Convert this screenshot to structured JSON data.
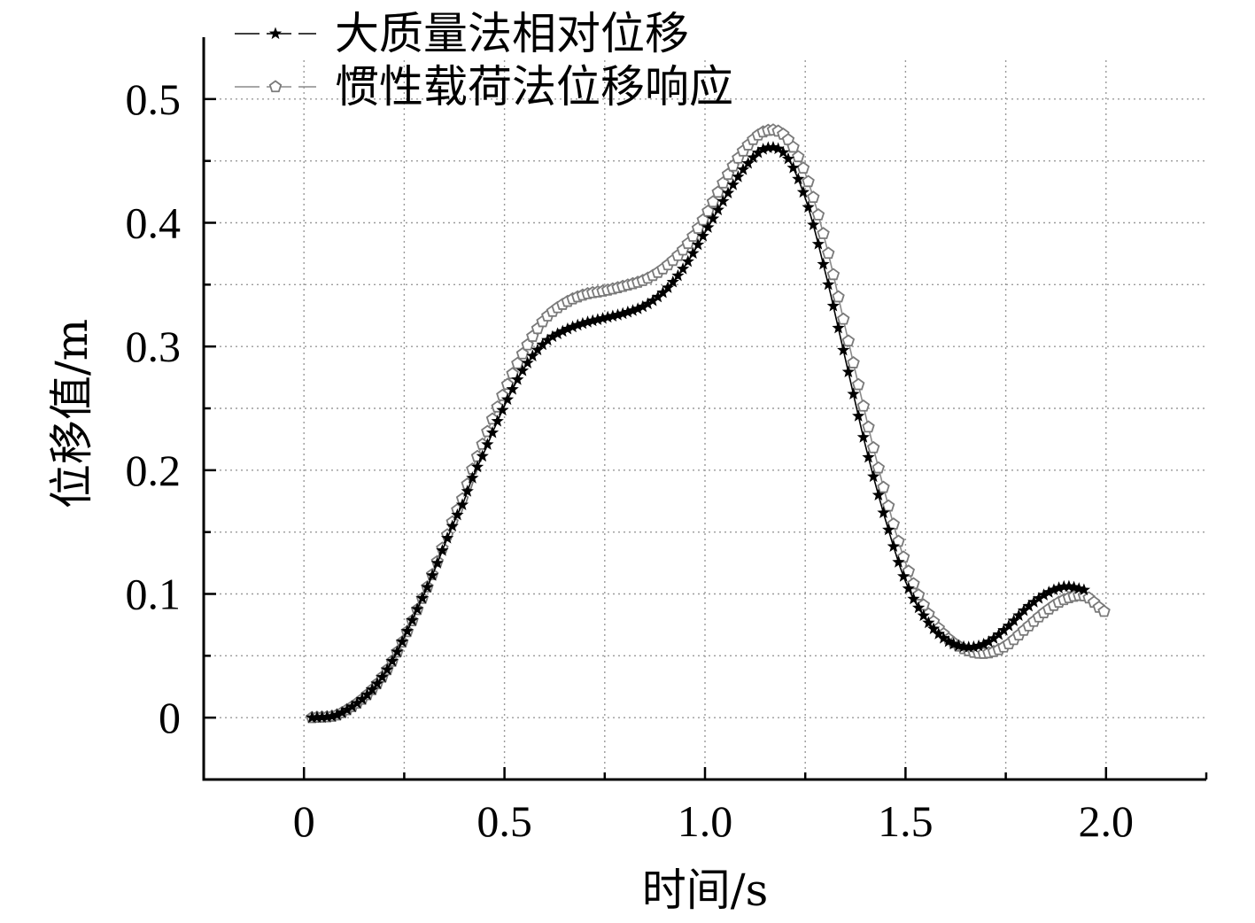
{
  "chart_data": {
    "type": "line",
    "xlabel": "时间/s",
    "ylabel": "位移值/m",
    "xlim": [
      -0.25,
      2.25
    ],
    "ylim": [
      -0.05,
      0.55
    ],
    "x_ticks": [
      0,
      0.5,
      1.0,
      1.5,
      2.0
    ],
    "x_tick_labels": [
      "0",
      "0.5",
      "1.0",
      "1.5",
      "2.0"
    ],
    "y_ticks": [
      0,
      0.1,
      0.2,
      0.3,
      0.4,
      0.5
    ],
    "y_tick_labels": [
      "0",
      "0.1",
      "0.2",
      "0.3",
      "0.4",
      "0.5"
    ],
    "grid": true,
    "legend_position": "top-left",
    "series": [
      {
        "name": "大质量法相对位移",
        "marker": "star",
        "color": "#000000",
        "x": [
          0.02,
          0.1,
          0.2,
          0.3,
          0.4,
          0.45,
          0.5,
          0.55,
          0.6,
          0.65,
          0.7,
          0.75,
          0.8,
          0.85,
          0.9,
          0.95,
          1.0,
          1.05,
          1.1,
          1.15,
          1.2,
          1.25,
          1.3,
          1.35,
          1.4,
          1.45,
          1.5,
          1.55,
          1.6,
          1.65,
          1.7,
          1.75,
          1.8,
          1.85,
          1.9,
          1.95
        ],
        "y": [
          0.0,
          0.005,
          0.035,
          0.1,
          0.175,
          0.215,
          0.252,
          0.283,
          0.303,
          0.313,
          0.319,
          0.323,
          0.327,
          0.333,
          0.345,
          0.365,
          0.392,
          0.42,
          0.445,
          0.46,
          0.455,
          0.42,
          0.36,
          0.29,
          0.22,
          0.16,
          0.11,
          0.08,
          0.063,
          0.057,
          0.06,
          0.072,
          0.088,
          0.1,
          0.106,
          0.103
        ]
      },
      {
        "name": "惯性载荷法位移响应",
        "marker": "pentagon-open",
        "color": "#8a8a8a",
        "x": [
          0.02,
          0.1,
          0.2,
          0.3,
          0.4,
          0.45,
          0.5,
          0.55,
          0.6,
          0.65,
          0.7,
          0.75,
          0.8,
          0.85,
          0.9,
          0.95,
          1.0,
          1.05,
          1.1,
          1.15,
          1.2,
          1.25,
          1.3,
          1.35,
          1.4,
          1.45,
          1.5,
          1.55,
          1.6,
          1.65,
          1.7,
          1.75,
          1.8,
          1.85,
          1.9,
          1.95,
          2.0
        ],
        "y": [
          0.0,
          0.005,
          0.035,
          0.1,
          0.18,
          0.225,
          0.264,
          0.297,
          0.322,
          0.335,
          0.342,
          0.345,
          0.349,
          0.354,
          0.364,
          0.38,
          0.405,
          0.435,
          0.46,
          0.474,
          0.47,
          0.44,
          0.385,
          0.315,
          0.245,
          0.18,
          0.125,
          0.088,
          0.066,
          0.055,
          0.052,
          0.058,
          0.072,
          0.086,
          0.096,
          0.098,
          0.085
        ]
      }
    ]
  }
}
